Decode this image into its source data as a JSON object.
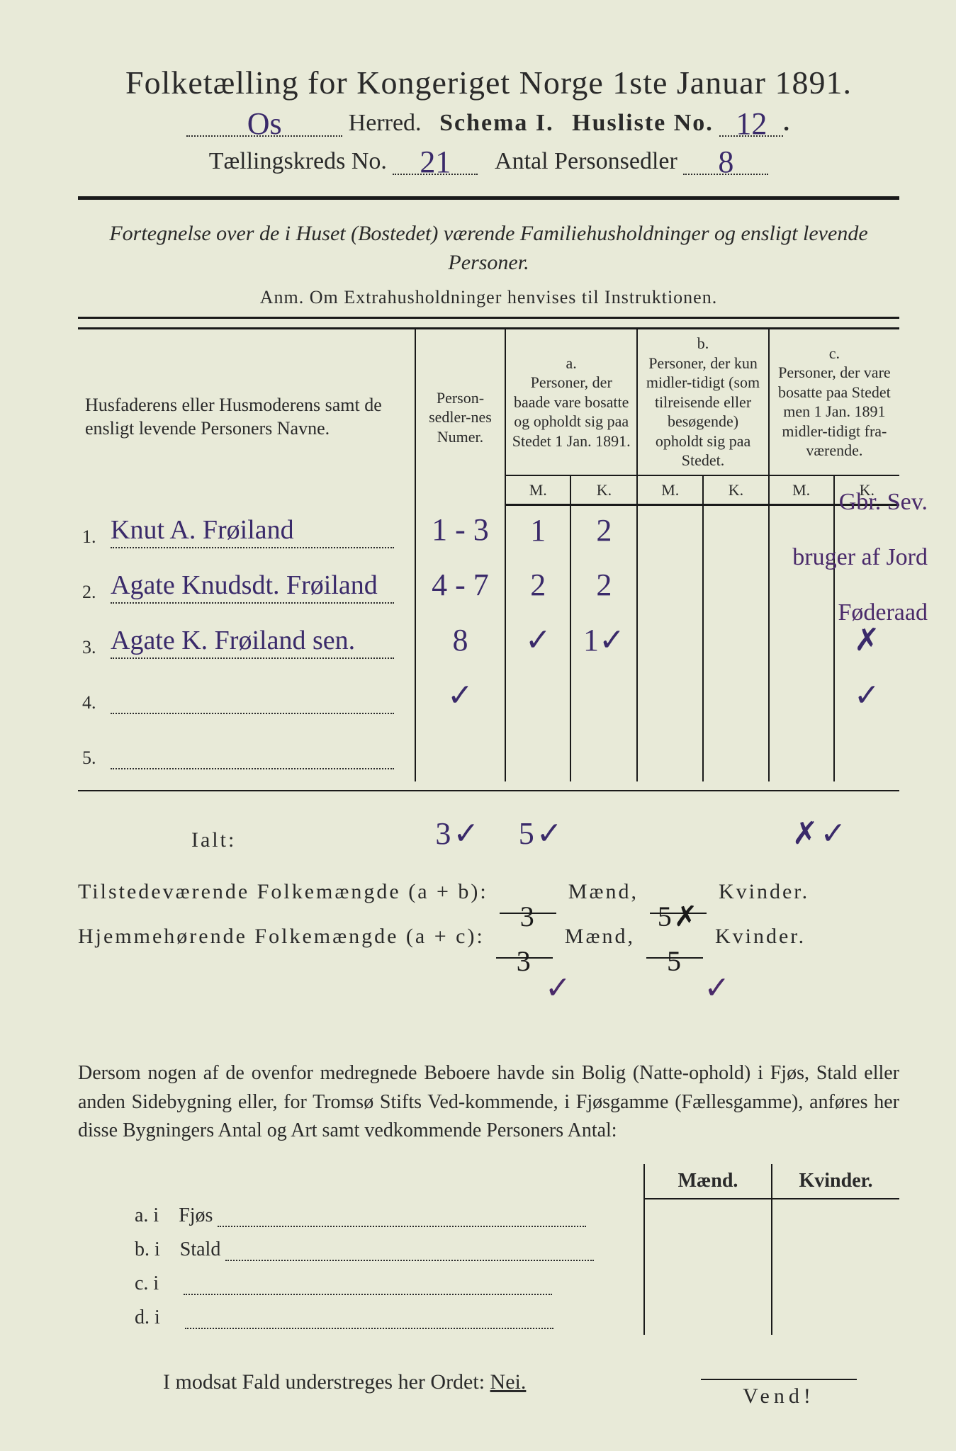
{
  "colors": {
    "paper": "#e8ead8",
    "ink": "#2a2a2a",
    "handwriting": "#3a2a6a",
    "rule": "#1a1a1a"
  },
  "title": "Folketælling for Kongeriget Norge 1ste Januar 1891.",
  "line1": {
    "herred_value": "Os",
    "herred_label": "Herred.",
    "schema_label": "Schema I.",
    "husliste_label": "Husliste No.",
    "husliste_value": "12"
  },
  "line2": {
    "kreds_label": "Tællingskreds No.",
    "kreds_value": "21",
    "antal_label": "Antal Personsedler",
    "antal_value": "8"
  },
  "desc": "Fortegnelse over de i Huset (Bostedet) værende Familiehusholdninger og ensligt levende Personer.",
  "anm": "Anm.  Om Extrahusholdninger henvises til Instruktionen.",
  "table": {
    "head": {
      "col1": "Husfaderens eller Husmoderens samt de ensligt levende Personers Navne.",
      "col2": "Person-sedler-nes Numer.",
      "a_label": "a.",
      "a_text": "Personer, der baade vare bosatte og opholdt sig paa Stedet 1 Jan. 1891.",
      "b_label": "b.",
      "b_text": "Personer, der kun midler-tidigt (som tilreisende eller besøgende) opholdt sig paa Stedet.",
      "c_label": "c.",
      "c_text": "Personer, der vare bosatte paa Stedet men 1 Jan. 1891 midler-tidigt fra-værende.",
      "m": "M.",
      "k": "K."
    },
    "rows": [
      {
        "n": "1.",
        "name": "Knut A. Frøiland",
        "numer": "1 - 3",
        "a_m": "1",
        "a_k": "2",
        "b_m": "",
        "b_k": "",
        "c_m": "",
        "c_k": "",
        "note": "Gbr. Sev."
      },
      {
        "n": "2.",
        "name": "Agate Knudsdt. Frøiland",
        "numer": "4 - 7",
        "a_m": "2",
        "a_k": "2",
        "b_m": "",
        "b_k": "",
        "c_m": "",
        "c_k": "",
        "note": "bruger af Jord"
      },
      {
        "n": "3.",
        "name": "Agate K. Frøiland sen.",
        "numer": "8",
        "a_m": "✓",
        "a_k": "1✓",
        "b_m": "",
        "b_k": "",
        "c_m": "",
        "c_k": "✗",
        "note": "Føderaad"
      },
      {
        "n": "4.",
        "name": "",
        "numer": "✓",
        "a_m": "",
        "a_k": "",
        "b_m": "",
        "b_k": "",
        "c_m": "",
        "c_k": "✓",
        "note": ""
      },
      {
        "n": "5.",
        "name": "",
        "numer": "",
        "a_m": "",
        "a_k": "",
        "b_m": "",
        "b_k": "",
        "c_m": "",
        "c_k": "",
        "note": ""
      }
    ],
    "ialt_label": "Ialt:",
    "ialt_a_m": "3✓",
    "ialt_a_k": "5✓",
    "ialt_c_k": "✗✓"
  },
  "totals": {
    "tilstede_label": "Tilstedeværende Folkemængde (a + b):",
    "tilstede_m": "3",
    "tilstede_k": "5✗",
    "hjemme_label": "Hjemmehørende Folkemængde (a + c):",
    "hjemme_m": "3",
    "hjemme_k": "5",
    "maend": "Mænd,",
    "kvinder": "Kvinder."
  },
  "para": "Dersom nogen af de ovenfor medregnede Beboere havde sin Bolig (Natte-ophold) i Fjøs, Stald eller anden Sidebygning eller, for Tromsø Stifts Ved-kommende, i Fjøsgamme (Fællesgamme), anføres her disse Bygningers Antal og Art samt vedkommende Personers Antal:",
  "small": {
    "maend": "Mænd.",
    "kvinder": "Kvinder.",
    "rows": [
      {
        "l": "a.  i",
        "t": "Fjøs"
      },
      {
        "l": "b.  i",
        "t": "Stald"
      },
      {
        "l": "c.  i",
        "t": ""
      },
      {
        "l": "d.  i",
        "t": ""
      }
    ]
  },
  "nei": "I modsat Fald understreges her Ordet:",
  "nei_word": "Nei.",
  "vend": "Vend!"
}
